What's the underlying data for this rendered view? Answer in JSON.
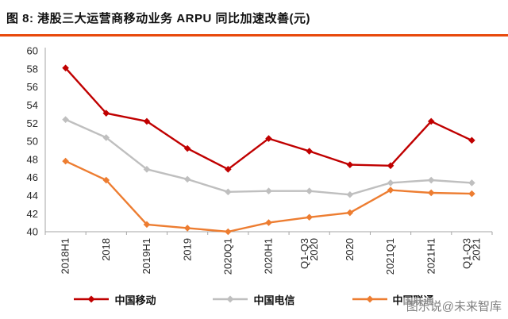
{
  "header": {
    "title": "图 8: 港股三大运营商移动业务 ARPU 同比加速改善(元)"
  },
  "watermark": {
    "text": "图乐说@未来智库"
  },
  "colors": {
    "accent_underline": "#e8490c",
    "axis": "#a6a6a6",
    "tick_label": "#262626"
  },
  "chart_data": {
    "type": "line",
    "title": "港股三大运营商移动业务 ARPU 同比加速改善(元)",
    "xlabel": "",
    "ylabel": "",
    "ylim": [
      40,
      60
    ],
    "ytick_step": 2,
    "yticks": [
      40,
      42,
      44,
      46,
      48,
      50,
      52,
      54,
      56,
      58,
      60
    ],
    "grid": false,
    "legend_position": "bottom",
    "marker": "diamond",
    "categories": [
      "2018H1",
      "2018",
      "2019H1",
      "2019",
      "2020Q1",
      "2020H1",
      "2020 Q1-Q3",
      "2020",
      "2021Q1",
      "2021H1",
      "2021 Q1-Q3"
    ],
    "category_label_lines": [
      [
        "2018H1"
      ],
      [
        "2018"
      ],
      [
        "2019H1"
      ],
      [
        "2019"
      ],
      [
        "2020Q1"
      ],
      [
        "2020H1"
      ],
      [
        "Q1-Q3",
        "2020"
      ],
      [
        "2020"
      ],
      [
        "2021Q1"
      ],
      [
        "2021H1"
      ],
      [
        "Q1-Q3",
        "2021"
      ]
    ],
    "series": [
      {
        "name": "中国移动",
        "color": "#c00000",
        "values": [
          58.1,
          53.1,
          52.2,
          49.2,
          46.9,
          50.3,
          48.9,
          47.4,
          47.3,
          52.2,
          50.1
        ]
      },
      {
        "name": "中国电信",
        "color": "#bfbfbf",
        "values": [
          52.4,
          50.4,
          46.9,
          45.8,
          44.4,
          44.5,
          44.5,
          44.1,
          45.4,
          45.7,
          45.4
        ]
      },
      {
        "name": "中国联通",
        "color": "#ed7d31",
        "values": [
          47.8,
          45.7,
          40.8,
          40.4,
          40.0,
          41.0,
          41.6,
          42.1,
          44.6,
          44.3,
          44.2
        ]
      }
    ]
  }
}
